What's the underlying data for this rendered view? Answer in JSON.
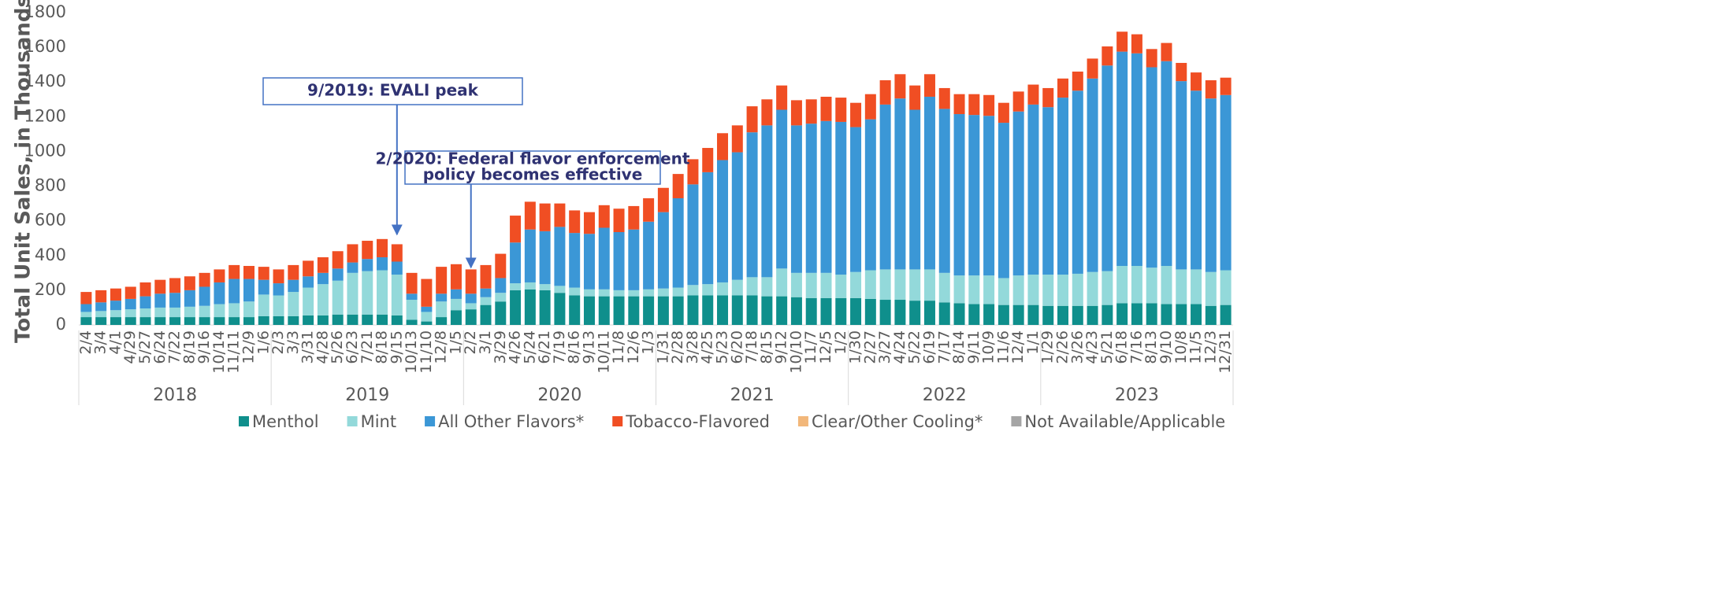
{
  "chart_data": {
    "type": "stacked_bar",
    "y_axis_label": "Total Unit Sales, in Thousands",
    "categories": [
      "2/4",
      "3/4",
      "4/1",
      "4/29",
      "5/27",
      "6/24",
      "7/22",
      "8/19",
      "9/16",
      "10/14",
      "11/11",
      "12/9",
      "1/6",
      "2/3",
      "3/3",
      "3/31",
      "4/28",
      "5/26",
      "6/23",
      "7/21",
      "8/18",
      "9/15",
      "10/13",
      "11/10",
      "12/8",
      "1/5",
      "2/2",
      "3/1",
      "3/29",
      "4/26",
      "5/24",
      "6/21",
      "7/19",
      "8/16",
      "9/13",
      "10/11",
      "11/8",
      "12/6",
      "1/3",
      "1/31",
      "2/28",
      "3/28",
      "4/25",
      "5/23",
      "6/20",
      "7/18",
      "8/15",
      "9/12",
      "10/10",
      "11/7",
      "12/5",
      "1/2",
      "1/30",
      "2/27",
      "3/27",
      "4/24",
      "5/22",
      "6/19",
      "7/17",
      "8/14",
      "9/11",
      "10/9",
      "11/6",
      "12/4",
      "1/1",
      "1/29",
      "2/26",
      "3/26",
      "4/23",
      "5/21",
      "6/18",
      "7/16",
      "8/13",
      "9/10",
      "10/8",
      "11/5",
      "12/3",
      "12/31"
    ],
    "years": [
      "2018",
      "2019",
      "2020",
      "2021",
      "2022",
      "2023"
    ],
    "ylim": [
      0,
      1800
    ],
    "yticks": [
      0,
      200,
      400,
      600,
      800,
      1000,
      1200,
      1400,
      1600,
      1800
    ],
    "series": [
      {
        "name": "Menthol",
        "color": "#0f8f8c",
        "values": [
          45,
          45,
          45,
          45,
          45,
          45,
          45,
          45,
          45,
          45,
          45,
          45,
          50,
          50,
          50,
          55,
          55,
          60,
          60,
          60,
          60,
          55,
          30,
          20,
          45,
          85,
          90,
          115,
          135,
          200,
          205,
          200,
          185,
          170,
          165,
          165,
          165,
          165,
          165,
          165,
          165,
          170,
          170,
          170,
          170,
          170,
          165,
          165,
          160,
          155,
          155,
          155,
          155,
          150,
          145,
          145,
          140,
          140,
          130,
          125,
          120,
          120,
          115,
          115,
          115,
          110,
          110,
          110,
          110,
          115,
          125,
          125,
          125,
          120,
          120,
          120,
          110,
          115
        ]
      },
      {
        "name": "Mint",
        "color": "#93d9da",
        "values": [
          30,
          35,
          40,
          45,
          50,
          55,
          55,
          60,
          65,
          75,
          80,
          90,
          125,
          120,
          140,
          160,
          180,
          195,
          240,
          250,
          255,
          235,
          115,
          55,
          90,
          65,
          35,
          45,
          50,
          40,
          40,
          35,
          40,
          45,
          40,
          40,
          35,
          35,
          40,
          45,
          50,
          60,
          65,
          75,
          90,
          105,
          110,
          160,
          140,
          145,
          145,
          135,
          150,
          165,
          175,
          175,
          180,
          180,
          170,
          160,
          165,
          165,
          155,
          170,
          175,
          180,
          180,
          185,
          195,
          195,
          215,
          215,
          205,
          220,
          200,
          200,
          195,
          200
        ]
      },
      {
        "name": "All Other Flavors*",
        "color": "#3b97d6",
        "values": [
          45,
          50,
          55,
          60,
          70,
          80,
          85,
          95,
          110,
          125,
          140,
          130,
          85,
          70,
          70,
          65,
          65,
          70,
          60,
          70,
          75,
          75,
          35,
          30,
          45,
          55,
          55,
          50,
          85,
          235,
          305,
          305,
          340,
          315,
          320,
          355,
          335,
          350,
          390,
          440,
          515,
          580,
          645,
          705,
          735,
          835,
          875,
          915,
          850,
          860,
          875,
          880,
          835,
          870,
          950,
          985,
          920,
          995,
          945,
          930,
          925,
          920,
          895,
          945,
          980,
          965,
          1020,
          1055,
          1115,
          1185,
          1235,
          1225,
          1155,
          1180,
          1085,
          1030,
          1000,
          1010
        ]
      },
      {
        "name": "Tobacco-Flavored",
        "color": "#f04e23",
        "values": [
          70,
          70,
          70,
          70,
          80,
          80,
          85,
          80,
          80,
          75,
          80,
          75,
          75,
          80,
          85,
          90,
          90,
          100,
          105,
          105,
          105,
          100,
          120,
          160,
          155,
          145,
          140,
          135,
          140,
          155,
          160,
          160,
          135,
          130,
          125,
          130,
          135,
          135,
          135,
          140,
          140,
          145,
          140,
          155,
          155,
          150,
          150,
          140,
          145,
          140,
          140,
          140,
          140,
          145,
          140,
          140,
          140,
          130,
          120,
          115,
          120,
          120,
          115,
          115,
          115,
          110,
          110,
          110,
          115,
          110,
          115,
          110,
          105,
          105,
          105,
          105,
          105,
          100
        ]
      },
      {
        "name": "Clear/Other Cooling*",
        "color": "#f2b77a",
        "values": [
          0,
          0,
          0,
          0,
          0,
          0,
          0,
          0,
          0,
          0,
          0,
          0,
          0,
          0,
          0,
          0,
          0,
          0,
          0,
          0,
          0,
          0,
          0,
          0,
          0,
          0,
          0,
          0,
          0,
          0,
          0,
          0,
          0,
          0,
          0,
          0,
          0,
          0,
          0,
          0,
          0,
          0,
          0,
          0,
          0,
          0,
          0,
          0,
          0,
          0,
          0,
          0,
          0,
          0,
          0,
          0,
          0,
          0,
          0,
          0,
          0,
          0,
          0,
          0,
          0,
          0,
          0,
          0,
          0,
          0,
          0,
          0,
          0,
          0,
          0,
          0,
          0,
          0
        ]
      },
      {
        "name": "Not Available/Applicable",
        "color": "#a5a5a5",
        "values": [
          0,
          0,
          0,
          0,
          0,
          0,
          0,
          0,
          0,
          0,
          0,
          0,
          0,
          0,
          0,
          0,
          0,
          0,
          0,
          0,
          0,
          0,
          0,
          0,
          0,
          0,
          0,
          0,
          0,
          0,
          0,
          0,
          0,
          0,
          0,
          0,
          0,
          0,
          0,
          0,
          0,
          0,
          0,
          0,
          0,
          0,
          0,
          0,
          0,
          0,
          0,
          0,
          0,
          0,
          0,
          0,
          0,
          0,
          0,
          0,
          0,
          0,
          0,
          0,
          0,
          0,
          0,
          0,
          0,
          0,
          0,
          0,
          0,
          0,
          0,
          0,
          0,
          0
        ]
      }
    ],
    "annotations": [
      {
        "lines": [
          "9/2019: EVALI peak"
        ]
      },
      {
        "lines": [
          "2/2020: Federal flavor enforcement",
          "policy becomes effective"
        ]
      }
    ]
  }
}
